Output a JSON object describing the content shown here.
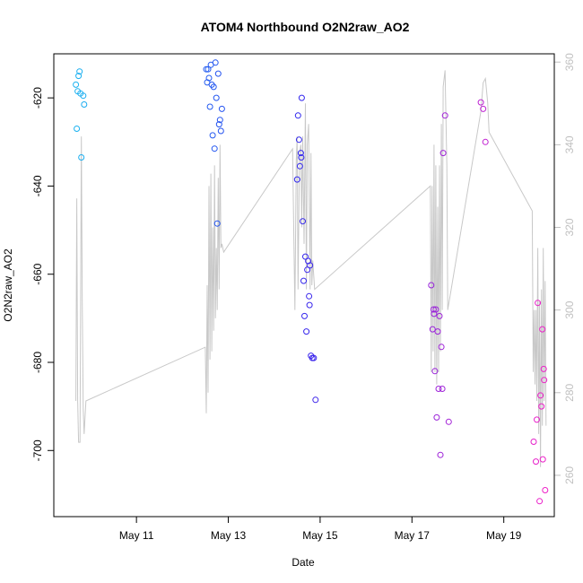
{
  "chart_data": {
    "type": "scatter",
    "title": "ATOM4 Northbound O2N2raw_AO2",
    "xlabel": "Date",
    "ylabel": "O2N2raw_AO2",
    "x_unit": "day of May",
    "xlim": [
      9.2,
      20.1
    ],
    "ylim": [
      -715,
      -610
    ],
    "y2lim": [
      250,
      362
    ],
    "x_ticks": [
      {
        "value": 11,
        "label": "May 11"
      },
      {
        "value": 13,
        "label": "May 13"
      },
      {
        "value": 15,
        "label": "May 15"
      },
      {
        "value": 17,
        "label": "May 17"
      },
      {
        "value": 19,
        "label": "May 19"
      }
    ],
    "y_ticks": [
      -700,
      -680,
      -660,
      -640,
      -620
    ],
    "y2_ticks": [
      260,
      280,
      300,
      320,
      340,
      360
    ],
    "colors": {
      "frame": "#000000",
      "line": "#c8c8c8",
      "right_axis": "#c0c0c0",
      "points_start": "#1ab4f0",
      "points_mid": "#2828f0",
      "points_end": "#f020c8"
    },
    "series": [
      {
        "name": "O2N2raw_AO2",
        "kind": "points",
        "axis": "left",
        "points": [
          [
            9.68,
            -617
          ],
          [
            9.7,
            -627
          ],
          [
            9.72,
            -618.5
          ],
          [
            9.74,
            -615
          ],
          [
            9.76,
            -614
          ],
          [
            9.78,
            -619
          ],
          [
            9.8,
            -633.5
          ],
          [
            9.84,
            -619.5
          ],
          [
            9.86,
            -621.5
          ],
          [
            12.52,
            -613.5
          ],
          [
            12.54,
            -616.5
          ],
          [
            12.56,
            -613.5
          ],
          [
            12.58,
            -615.5
          ],
          [
            12.6,
            -622
          ],
          [
            12.62,
            -612.5
          ],
          [
            12.64,
            -617
          ],
          [
            12.66,
            -628.5
          ],
          [
            12.68,
            -617.5
          ],
          [
            12.7,
            -631.5
          ],
          [
            12.72,
            -612
          ],
          [
            12.74,
            -620
          ],
          [
            12.76,
            -648.5
          ],
          [
            12.78,
            -614.5
          ],
          [
            12.8,
            -626
          ],
          [
            12.82,
            -625
          ],
          [
            12.84,
            -627.5
          ],
          [
            12.86,
            -622.5
          ],
          [
            14.5,
            -638.5
          ],
          [
            14.52,
            -624
          ],
          [
            14.54,
            -629.5
          ],
          [
            14.56,
            -635.5
          ],
          [
            14.58,
            -632.5
          ],
          [
            14.59,
            -633.5
          ],
          [
            14.6,
            -620
          ],
          [
            14.62,
            -648
          ],
          [
            14.64,
            -661.5
          ],
          [
            14.66,
            -669.5
          ],
          [
            14.68,
            -656
          ],
          [
            14.7,
            -673
          ],
          [
            14.72,
            -659
          ],
          [
            14.74,
            -657
          ],
          [
            14.76,
            -665
          ],
          [
            14.77,
            -667
          ],
          [
            14.78,
            -658
          ],
          [
            14.8,
            -678.5
          ],
          [
            14.83,
            -679
          ],
          [
            14.86,
            -679
          ],
          [
            14.9,
            -688.5
          ],
          [
            17.42,
            -662.5
          ],
          [
            17.45,
            -672.5
          ],
          [
            17.47,
            -668
          ],
          [
            17.48,
            -669
          ],
          [
            17.5,
            -682
          ],
          [
            17.52,
            -668
          ],
          [
            17.54,
            -692.5
          ],
          [
            17.56,
            -673
          ],
          [
            17.58,
            -686
          ],
          [
            17.6,
            -669.5
          ],
          [
            17.62,
            -701
          ],
          [
            17.64,
            -676.5
          ],
          [
            17.66,
            -686
          ],
          [
            17.68,
            -632.5
          ],
          [
            17.72,
            -624
          ],
          [
            17.8,
            -693.5
          ],
          [
            18.5,
            -621
          ],
          [
            18.55,
            -622.5
          ],
          [
            18.6,
            -630
          ],
          [
            19.65,
            -698
          ],
          [
            19.7,
            -702.5
          ],
          [
            19.72,
            -693
          ],
          [
            19.74,
            -666.5
          ],
          [
            19.78,
            -711.5
          ],
          [
            19.8,
            -687.5
          ],
          [
            19.82,
            -690
          ],
          [
            19.84,
            -672.5
          ],
          [
            19.85,
            -702
          ],
          [
            19.87,
            -681.5
          ],
          [
            19.88,
            -684
          ],
          [
            19.9,
            -709
          ]
        ]
      },
      {
        "name": "secondary",
        "kind": "line",
        "axis": "right",
        "points": [
          [
            9.68,
            278
          ],
          [
            9.7,
            327
          ],
          [
            9.72,
            278
          ],
          [
            9.74,
            268
          ],
          [
            9.77,
            268
          ],
          [
            9.8,
            342
          ],
          [
            9.82,
            302
          ],
          [
            9.84,
            276
          ],
          [
            9.86,
            270
          ],
          [
            9.9,
            278
          ],
          [
            12.5,
            291
          ],
          [
            12.52,
            275
          ],
          [
            12.54,
            306
          ],
          [
            12.56,
            280
          ],
          [
            12.58,
            330
          ],
          [
            12.6,
            288
          ],
          [
            12.62,
            333
          ],
          [
            12.64,
            290
          ],
          [
            12.66,
            320
          ],
          [
            12.68,
            295
          ],
          [
            12.7,
            335
          ],
          [
            12.72,
            298
          ],
          [
            12.74,
            315
          ],
          [
            12.76,
            300
          ],
          [
            12.78,
            332
          ],
          [
            12.8,
            305
          ],
          [
            12.82,
            340
          ],
          [
            12.84,
            315
          ],
          [
            12.86,
            316
          ],
          [
            12.9,
            314
          ],
          [
            14.4,
            339
          ],
          [
            14.45,
            300
          ],
          [
            14.48,
            336
          ],
          [
            14.5,
            342
          ],
          [
            14.52,
            305
          ],
          [
            14.55,
            338
          ],
          [
            14.58,
            340
          ],
          [
            14.6,
            320
          ],
          [
            14.62,
            342
          ],
          [
            14.65,
            316
          ],
          [
            14.68,
            350
          ],
          [
            14.7,
            305
          ],
          [
            14.72,
            340
          ],
          [
            14.75,
            345
          ],
          [
            14.78,
            305
          ],
          [
            14.8,
            338
          ],
          [
            14.82,
            306
          ],
          [
            14.84,
            312
          ],
          [
            14.88,
            305
          ],
          [
            17.4,
            330
          ],
          [
            17.42,
            285
          ],
          [
            17.44,
            330
          ],
          [
            17.46,
            290
          ],
          [
            17.48,
            340
          ],
          [
            17.5,
            285
          ],
          [
            17.52,
            335
          ],
          [
            17.54,
            282
          ],
          [
            17.56,
            325
          ],
          [
            17.58,
            285
          ],
          [
            17.6,
            335
          ],
          [
            17.62,
            290
          ],
          [
            17.64,
            345
          ],
          [
            17.66,
            300
          ],
          [
            17.68,
            354
          ],
          [
            17.72,
            358
          ],
          [
            17.76,
            335
          ],
          [
            17.78,
            300
          ],
          [
            18.5,
            348
          ],
          [
            18.55,
            355
          ],
          [
            18.6,
            356
          ],
          [
            18.65,
            350
          ],
          [
            18.68,
            343
          ],
          [
            19.62,
            324
          ],
          [
            19.64,
            285
          ],
          [
            19.66,
            300
          ],
          [
            19.68,
            282
          ],
          [
            19.7,
            300
          ],
          [
            19.72,
            278
          ],
          [
            19.74,
            315
          ],
          [
            19.76,
            270
          ],
          [
            19.78,
            302
          ],
          [
            19.8,
            262
          ],
          [
            19.82,
            305
          ],
          [
            19.84,
            272
          ],
          [
            19.86,
            315
          ],
          [
            19.88,
            278
          ],
          [
            19.9,
            307
          ],
          [
            19.92,
            272
          ]
        ]
      }
    ]
  }
}
